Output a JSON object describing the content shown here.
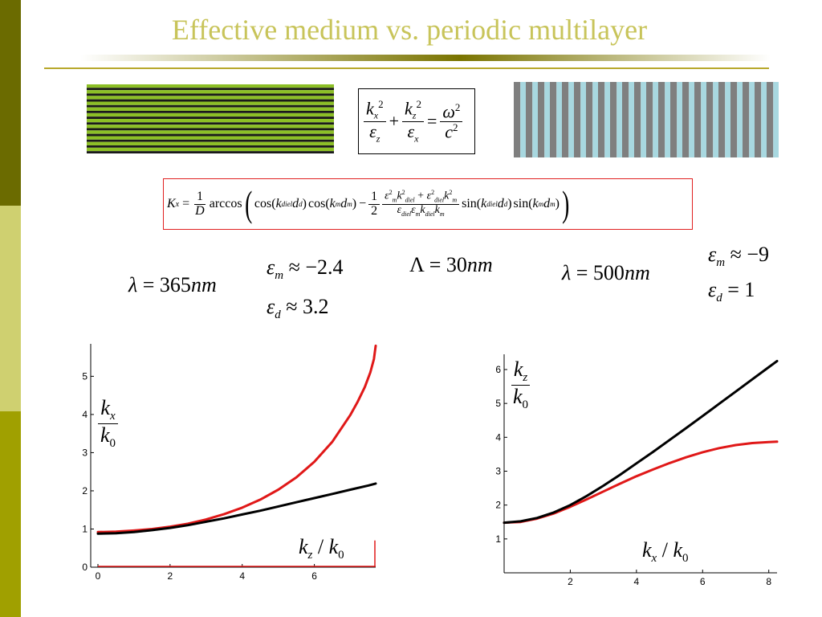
{
  "slide": {
    "title": "Effective medium vs. periodic multilayer",
    "colors": {
      "title": "#c8c45a",
      "sidebar_top": "#6b6b00",
      "sidebar_mid": "#cfd070",
      "sidebar_bottom": "#a0a000",
      "green_layer": "#8cbf26",
      "gray_layer": "#7f7f7f",
      "teal_layer": "#a8d8e0",
      "red_curve": "#e01818",
      "black_curve": "#000000"
    },
    "equations": {
      "dispersion_effective": "kx^2/εz + kz^2/εx = ω^2/c^2",
      "bloch": "Kx = (1/D) arccos( cos(k_diel d_d) cos(k_m d_m) − (1/2) (εm^2 k_diel^2 + ε_diel^2 k_m^2)/(ε_diel εm k_diel k_m) sin(k_diel d_d) sin(k_m d_m) )"
    },
    "params": {
      "lambda1": {
        "sym": "λ",
        "eq": " = 365",
        "unit": "nm"
      },
      "eps_m1": {
        "sym": "ε",
        "sub": "m",
        "rel": " ≈ −2.4"
      },
      "eps_d1": {
        "sym": "ε",
        "sub": "d",
        "rel": " ≈ 3.2"
      },
      "period": {
        "sym": "Λ",
        "eq": " = 30",
        "unit": "nm"
      },
      "lambda2": {
        "sym": "λ",
        "eq": " = 500",
        "unit": "nm"
      },
      "eps_m2": {
        "sym": "ε",
        "sub": "m",
        "rel": " ≈ −9"
      },
      "eps_d2": {
        "sym": "ε",
        "sub": "d",
        "rel": " = 1"
      }
    }
  },
  "chart_data": [
    {
      "type": "line",
      "xlim": [
        -0.2,
        7.7
      ],
      "ylim": [
        0,
        5.85
      ],
      "xticks": [
        "0",
        "2",
        "4",
        "6"
      ],
      "yticks": [
        "0",
        "1",
        "2",
        "3",
        "4",
        "5"
      ],
      "xticks_values": [
        0,
        2,
        4,
        6
      ],
      "yticks_values": [
        0,
        1,
        2,
        3,
        4,
        5
      ],
      "xlabel": {
        "k": "k",
        "sub": "z",
        "sep": " / ",
        "k0": "k",
        "sub0": "0"
      },
      "ylabel": {
        "num_k": "k",
        "num_sub": "x",
        "den_k": "k",
        "den_sub": "0"
      },
      "series": [
        {
          "color": "#e01818",
          "x": [
            0,
            0.5,
            1,
            1.5,
            2,
            2.5,
            3,
            3.5,
            4,
            4.5,
            5,
            5.5,
            6,
            6.5,
            7,
            7.2,
            7.4,
            7.55,
            7.65,
            7.7
          ],
          "y": [
            0.92,
            0.93,
            0.96,
            1.0,
            1.06,
            1.14,
            1.25,
            1.39,
            1.56,
            1.77,
            2.03,
            2.35,
            2.76,
            3.29,
            3.99,
            4.33,
            4.72,
            5.1,
            5.45,
            5.8
          ]
        },
        {
          "color": "#000000",
          "x": [
            0,
            0.5,
            1,
            1.5,
            2,
            2.5,
            3,
            3.5,
            4,
            4.5,
            5,
            5.5,
            6,
            6.5,
            7,
            7.5,
            7.7
          ],
          "y": [
            0.88,
            0.89,
            0.92,
            0.97,
            1.03,
            1.1,
            1.19,
            1.28,
            1.38,
            1.48,
            1.59,
            1.7,
            1.81,
            1.92,
            2.03,
            2.14,
            2.19
          ]
        }
      ]
    },
    {
      "type": "line",
      "xlim": [
        0,
        8.25
      ],
      "ylim": [
        0,
        6.45
      ],
      "xticks": [
        "2",
        "4",
        "6",
        "8"
      ],
      "yticks": [
        "1",
        "2",
        "3",
        "4",
        "5",
        "6"
      ],
      "xticks_values": [
        2,
        4,
        6,
        8
      ],
      "yticks_values": [
        1,
        2,
        3,
        4,
        5,
        6
      ],
      "xlabel": {
        "k": "k",
        "sub": "x",
        "sep": " / ",
        "k0": "k",
        "sub0": "0"
      },
      "ylabel": {
        "num_k": "k",
        "num_sub": "z",
        "den_k": "k",
        "den_sub": "0"
      },
      "series": [
        {
          "color": "#e01818",
          "x": [
            0,
            0.5,
            1,
            1.5,
            2,
            2.5,
            3,
            3.5,
            4,
            4.5,
            5,
            5.5,
            6,
            6.5,
            7,
            7.5,
            8,
            8.25
          ],
          "y": [
            1.48,
            1.5,
            1.6,
            1.75,
            1.95,
            2.17,
            2.4,
            2.63,
            2.85,
            3.05,
            3.24,
            3.41,
            3.56,
            3.68,
            3.77,
            3.83,
            3.86,
            3.87
          ]
        },
        {
          "color": "#000000",
          "x": [
            0,
            0.5,
            1,
            1.5,
            2,
            2.5,
            3,
            3.5,
            4,
            4.5,
            5,
            5.5,
            6,
            6.5,
            7,
            7.5,
            8,
            8.25
          ],
          "y": [
            1.48,
            1.52,
            1.62,
            1.78,
            2.0,
            2.27,
            2.57,
            2.89,
            3.23,
            3.57,
            3.92,
            4.27,
            4.63,
            4.99,
            5.35,
            5.71,
            6.07,
            6.25
          ]
        }
      ]
    }
  ]
}
